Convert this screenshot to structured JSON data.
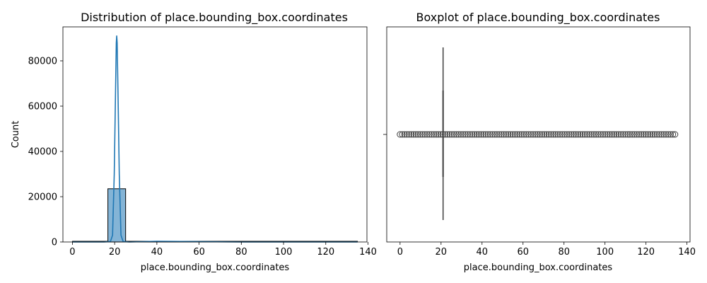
{
  "chart_data": [
    {
      "type": "bar",
      "title": "Distribution of place.bounding_box.coordinates",
      "xlabel": "place.bounding_box.coordinates",
      "ylabel": "Count",
      "xlim": [
        -4.5,
        139.5
      ],
      "ylim": [
        0,
        95000
      ],
      "xticks": [
        0,
        20,
        40,
        60,
        80,
        100,
        120,
        140
      ],
      "yticks": [
        0,
        20000,
        40000,
        60000,
        80000
      ],
      "histogram": {
        "bins": [
          {
            "x0": 0,
            "x1": 16.8,
            "count": 300
          },
          {
            "x0": 16.8,
            "x1": 25.2,
            "count": 23500
          },
          {
            "x0": 25.2,
            "x1": 135,
            "count": 300
          }
        ],
        "color": "#1f77b4"
      },
      "kde": {
        "x": [
          0,
          15,
          18,
          19,
          19.8,
          20.4,
          20.8,
          21.0,
          21.2,
          21.6,
          22.2,
          23.0,
          24,
          27,
          40,
          80,
          135
        ],
        "y": [
          0,
          0,
          200,
          3000,
          30000,
          66000,
          88000,
          91000,
          88000,
          66000,
          30000,
          3000,
          200,
          0,
          300,
          0,
          0
        ],
        "color": "#1f77b4"
      }
    },
    {
      "type": "box",
      "title": "Boxplot of place.bounding_box.coordinates",
      "xlabel": "place.bounding_box.coordinates",
      "xlim": [
        -6.5,
        141.5
      ],
      "xticks": [
        0,
        20,
        40,
        60,
        80,
        100,
        120,
        140
      ],
      "box": {
        "q1": 21,
        "median": 21,
        "q3": 21,
        "whisker_low": 21,
        "whisker_high": 21
      },
      "outliers": {
        "min": 0,
        "max": 135,
        "step": 1.1
      },
      "color": "#3d3d3d"
    }
  ]
}
